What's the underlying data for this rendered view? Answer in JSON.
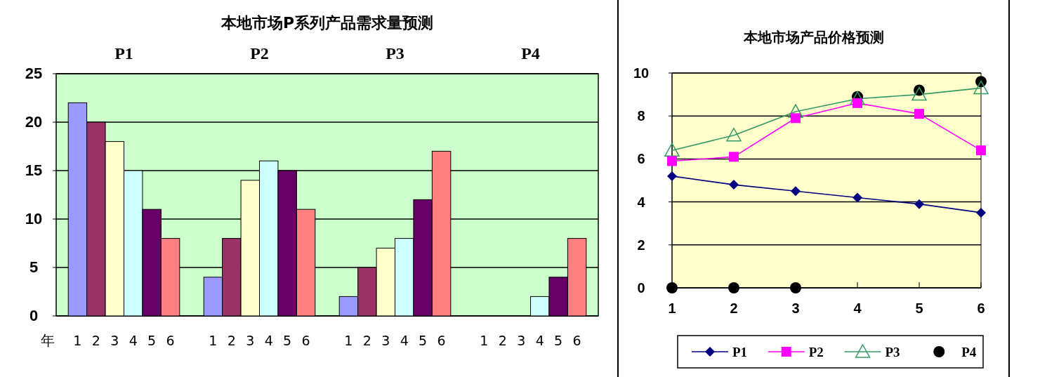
{
  "chart_data": [
    {
      "type": "bar",
      "title": "本地市场P系列产品需求量预测",
      "xlabel": "年",
      "categories": [
        "P1",
        "P2",
        "P3",
        "P4"
      ],
      "series": [
        {
          "name": "1",
          "color": "#9999ff",
          "values": [
            22,
            4,
            2,
            0
          ]
        },
        {
          "name": "2",
          "color": "#993366",
          "values": [
            20,
            8,
            5,
            0
          ]
        },
        {
          "name": "3",
          "color": "#ffffcc",
          "values": [
            18,
            14,
            7,
            0
          ]
        },
        {
          "name": "4",
          "color": "#ccffff",
          "values": [
            15,
            16,
            8,
            2
          ]
        },
        {
          "name": "5",
          "color": "#660066",
          "values": [
            11,
            15,
            12,
            4
          ]
        },
        {
          "name": "6",
          "color": "#ff8080",
          "values": [
            8,
            11,
            17,
            8
          ]
        }
      ],
      "ylim": [
        0,
        25
      ],
      "yticks": [
        0,
        5,
        10,
        15,
        20,
        25
      ],
      "grid": "y"
    },
    {
      "type": "line",
      "title": "本地市场产品价格预测",
      "x": [
        1,
        2,
        3,
        4,
        5,
        6
      ],
      "series": [
        {
          "name": "P1",
          "color": "#000080",
          "marker": "diamond",
          "values": [
            5.2,
            4.8,
            4.5,
            4.2,
            3.9,
            3.5
          ]
        },
        {
          "name": "P2",
          "color": "#ff00ff",
          "marker": "square",
          "values": [
            5.9,
            6.1,
            7.9,
            8.6,
            8.1,
            6.4
          ]
        },
        {
          "name": "P3",
          "color": "#339966",
          "marker": "triangle",
          "values": [
            6.4,
            7.1,
            8.2,
            8.8,
            9.0,
            9.3
          ]
        },
        {
          "name": "P4",
          "type": "scatter",
          "color": "#000000",
          "marker": "circle",
          "values": [
            0,
            0,
            0,
            8.9,
            9.2,
            9.6
          ]
        }
      ],
      "xlim": [
        1,
        6
      ],
      "xticks": [
        1,
        2,
        3,
        4,
        5,
        6
      ],
      "ylim": [
        0,
        10
      ],
      "yticks": [
        0,
        2,
        4,
        6,
        8,
        10
      ],
      "grid": "y",
      "legend": "bottom",
      "line_style": "solid"
    }
  ]
}
